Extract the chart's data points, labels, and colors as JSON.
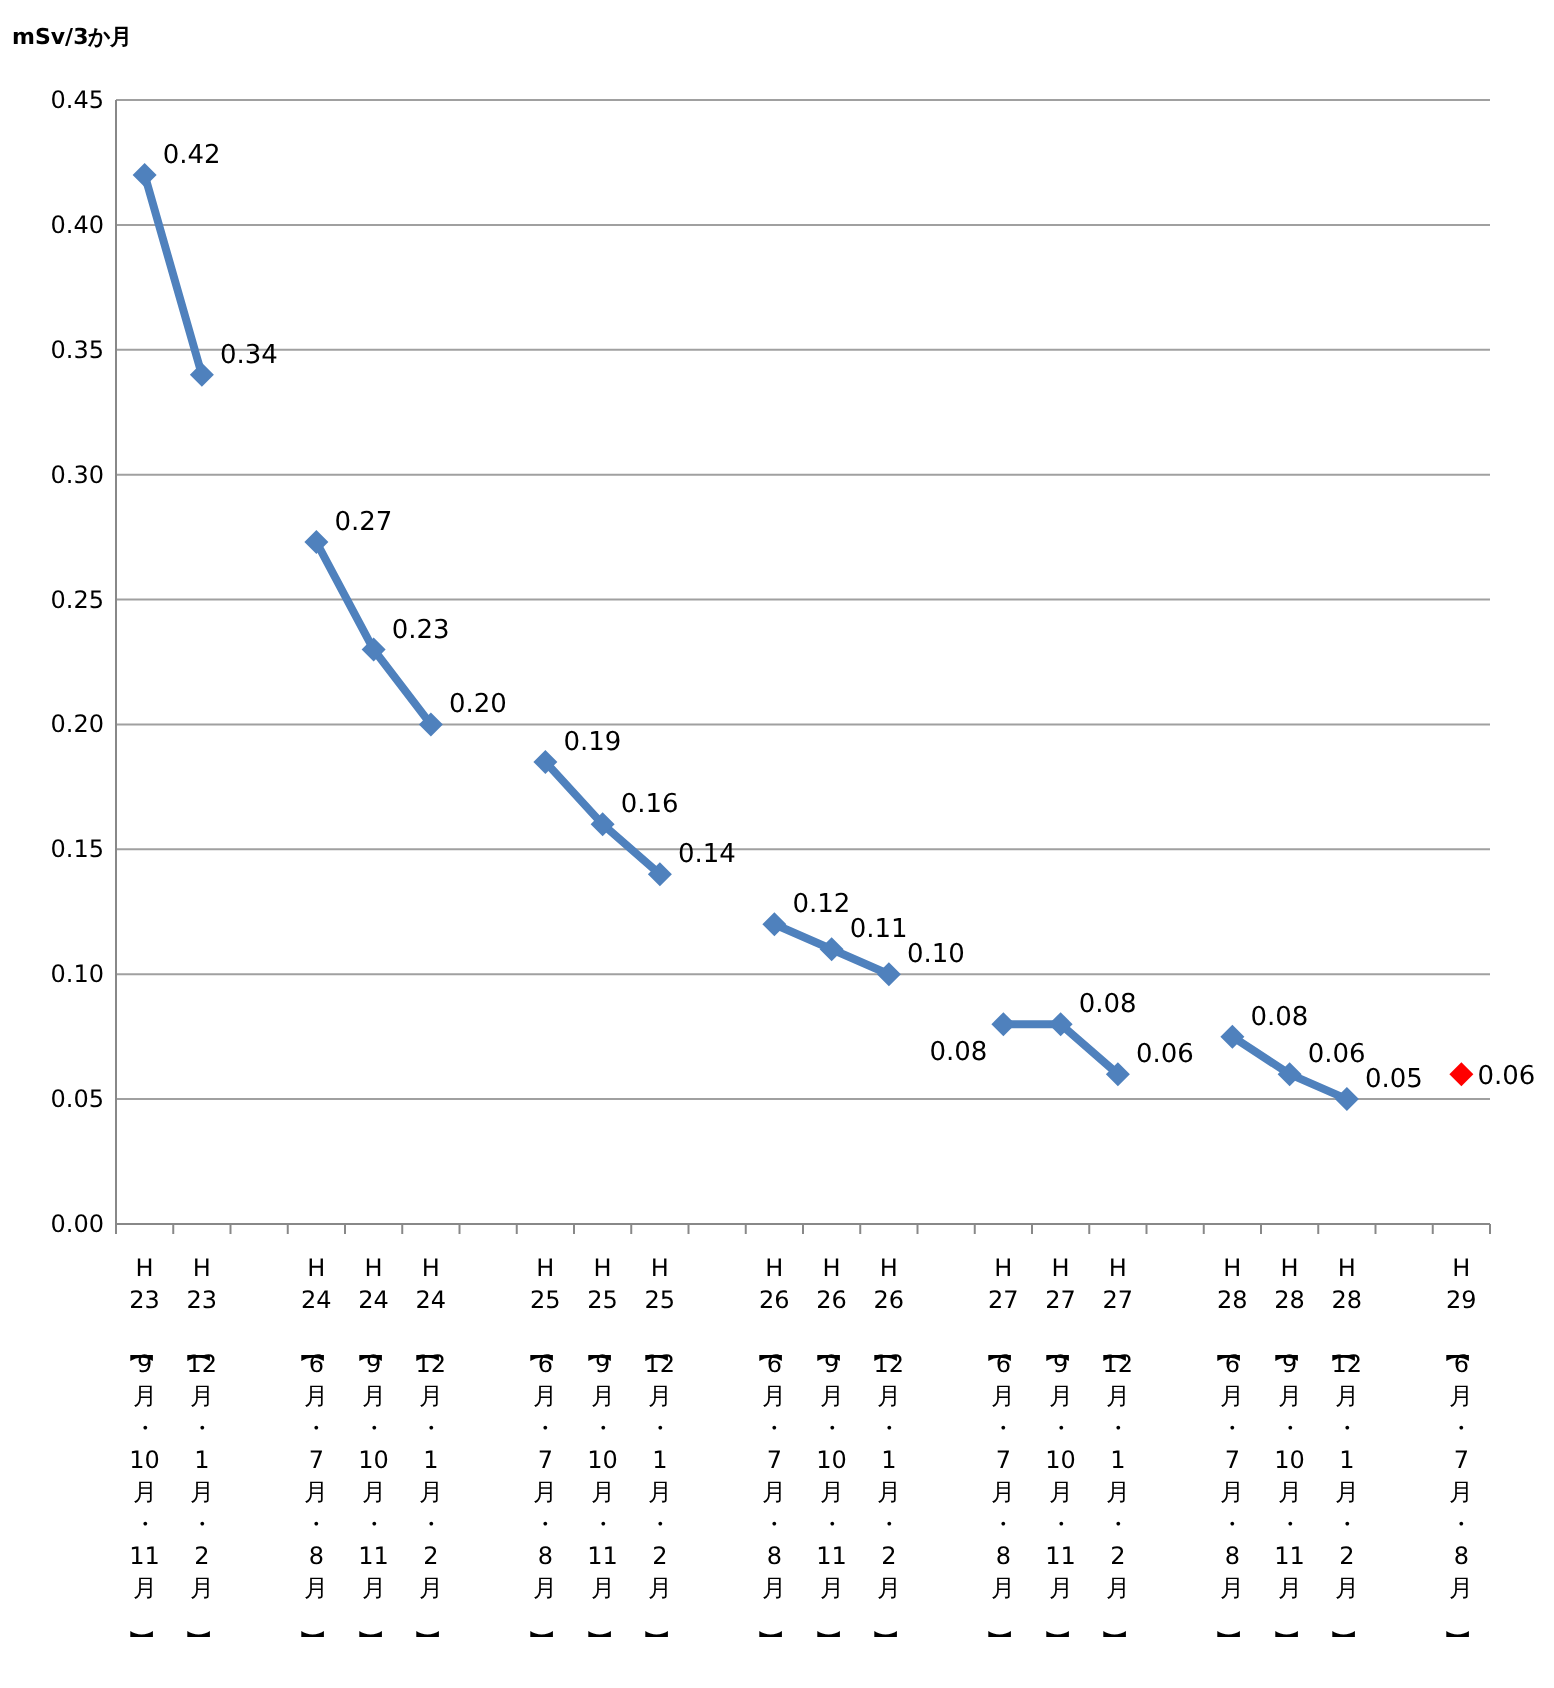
{
  "chart_data": {
    "type": "line",
    "ylabel": "mSv/3か月",
    "categories": [
      "H23【9月・10月・11月】",
      "H23【12月・1月・2月】",
      null,
      "H24【6月・7月・8月】",
      "H24【9月・10月・11月】",
      "H24【12月・1月・2月】",
      null,
      "H25【6月・7月・8月】",
      "H25【9月・10月・11月】",
      "H25【12月・1月・2月】",
      null,
      "H26【6月・7月・8月】",
      "H26【9月・10月・11月】",
      "H26【12月・1月・2月】",
      null,
      "H27【6月・7月・8月】",
      "H27【9月・10月・11月】",
      "H27【12月・1月・2月】",
      null,
      "H28【6月・7月・8月】",
      "H28【9月・10月・11月】",
      "H28【12月・1月・2月】",
      null,
      "H29【6月・7月・8月】"
    ],
    "series": [
      {
        "color": "#4f81bd",
        "values": [
          0.42,
          0.34,
          null,
          0.273,
          0.23,
          0.2,
          null,
          0.185,
          0.16,
          0.14,
          null,
          0.12,
          0.11,
          0.1,
          null,
          0.08,
          0.08,
          0.06,
          null,
          0.075,
          0.06,
          0.05,
          null,
          null
        ],
        "value_labels": [
          "0.42",
          "0.34",
          null,
          "0.27",
          "0.23",
          "0.20",
          null,
          "0.19",
          "0.16",
          "0.14",
          null,
          "0.12",
          "0.11",
          "0.10",
          null,
          "0.08",
          "0.08",
          "0.06",
          null,
          "0.08",
          "0.06",
          "0.05",
          null,
          null
        ]
      },
      {
        "type": "scatter",
        "color": "#ff0000",
        "values": [
          null,
          null,
          null,
          null,
          null,
          null,
          null,
          null,
          null,
          null,
          null,
          null,
          null,
          null,
          null,
          null,
          null,
          null,
          null,
          null,
          null,
          null,
          null,
          0.06
        ],
        "value_labels": [
          null,
          null,
          null,
          null,
          null,
          null,
          null,
          null,
          null,
          null,
          null,
          null,
          null,
          null,
          null,
          null,
          null,
          null,
          null,
          null,
          null,
          null,
          null,
          "0.06"
        ]
      }
    ],
    "ylim": [
      0,
      0.45
    ],
    "yticks": [
      {
        "value": 0,
        "label": "0.00"
      },
      {
        "value": 0.05,
        "label": "0.05"
      },
      {
        "value": 0.1,
        "label": "0.10"
      },
      {
        "value": 0.15,
        "label": "0.15"
      },
      {
        "value": 0.2,
        "label": "0.20"
      },
      {
        "value": 0.25,
        "label": "0.25"
      },
      {
        "value": 0.3,
        "label": "0.30"
      },
      {
        "value": 0.35,
        "label": "0.35"
      },
      {
        "value": 0.4,
        "label": "0.40"
      },
      {
        "value": 0.45,
        "label": "0.45"
      }
    ],
    "grid": "y",
    "marker": "diamond",
    "line_style": "solid"
  }
}
